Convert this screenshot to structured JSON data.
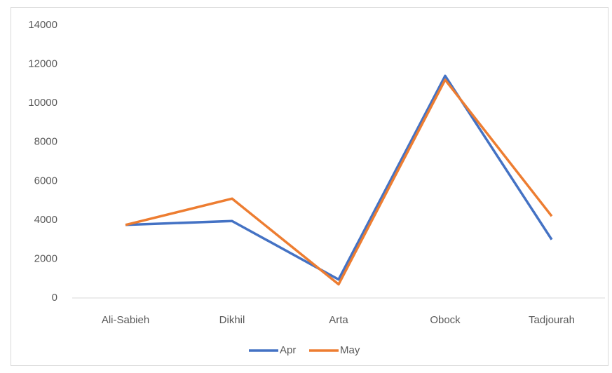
{
  "chart_data": {
    "type": "line",
    "categories": [
      "Ali-Sabieh",
      "Dikhil",
      "Arta",
      "Obock",
      "Tadjourah"
    ],
    "series": [
      {
        "name": "Apr",
        "color": "#4472c4",
        "values": [
          3750,
          3950,
          950,
          11400,
          3000
        ]
      },
      {
        "name": "May",
        "color": "#ed7d31",
        "values": [
          3750,
          5100,
          700,
          11200,
          4200
        ]
      }
    ],
    "ylim": [
      0,
      14000
    ],
    "yticks": [
      0,
      2000,
      4000,
      6000,
      8000,
      10000,
      12000,
      14000
    ],
    "grid": false,
    "legend": "bottom"
  }
}
